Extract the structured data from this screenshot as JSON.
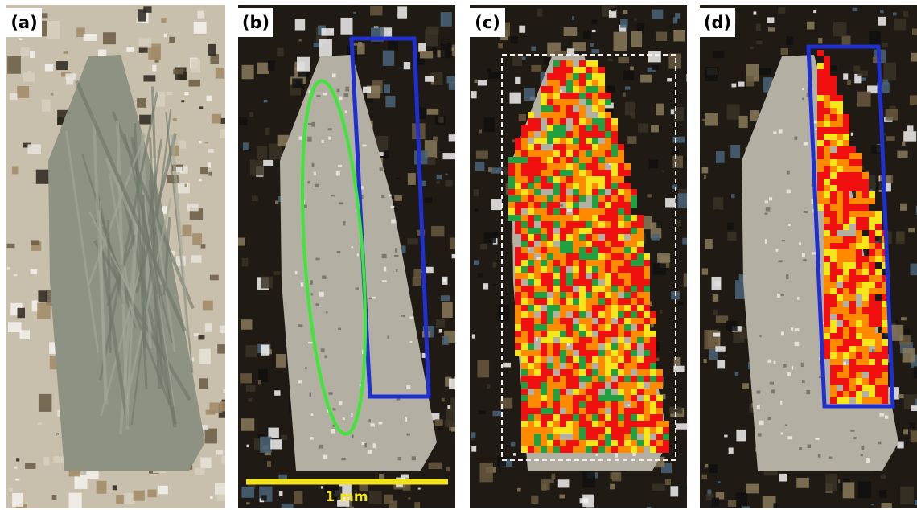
{
  "panels": [
    {
      "label": "(a)"
    },
    {
      "label": "(b)"
    },
    {
      "label": "(c)"
    },
    {
      "label": "(d)"
    }
  ],
  "scale_bar": {
    "label": "1 mm"
  }
}
